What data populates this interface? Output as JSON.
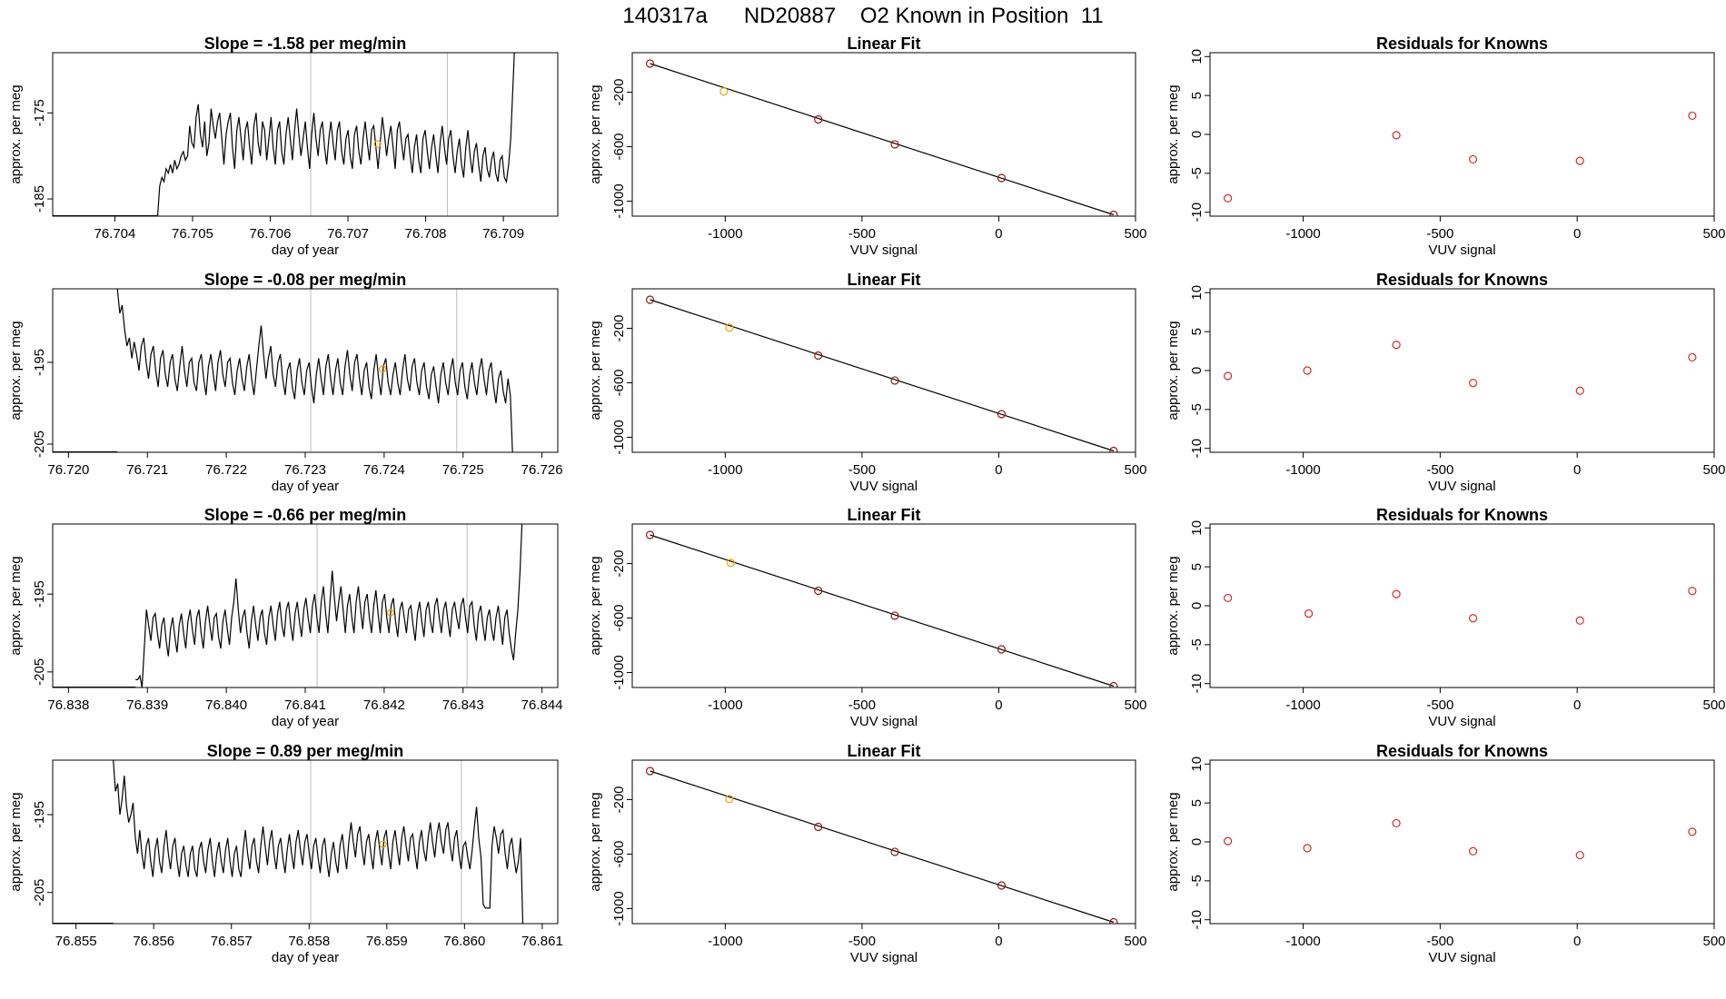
{
  "figure_title": "140317a      ND20887    O2 Known in Position  11",
  "colors": {
    "line": "#000000",
    "frame": "#000000",
    "vline": "#bdbdbd",
    "highlight": "#f2a100",
    "residual": "#d62728",
    "fit_point": "#8b1a1a"
  },
  "chart_data": [
    {
      "type": "line",
      "panel": "timeseries-1",
      "title": "Slope =  -1.58  per meg/min",
      "xlabel": "day of year",
      "ylabel": "approx. per meg",
      "xlim": [
        76.7032,
        76.7097
      ],
      "ylim": [
        -187,
        -168
      ],
      "xticks": [
        "76.704",
        "76.705",
        "76.706",
        "76.707",
        "76.708",
        "76.709"
      ],
      "yticks": [
        "-175",
        "-185"
      ],
      "x_start": 76.70455,
      "x_end": 76.70915,
      "y": [
        -187,
        -183.5,
        -182.5,
        -183,
        -181.5,
        -182,
        -181,
        -182,
        -180.5,
        -181.5,
        -181,
        -180,
        -179.5,
        -180.5,
        -180,
        -176.5,
        -178.5,
        -179,
        -175.5,
        -174,
        -177.5,
        -179,
        -176,
        -180,
        -178.5,
        -174.5,
        -176.5,
        -178,
        -176,
        -175,
        -178,
        -181,
        -177.5,
        -176,
        -175,
        -179,
        -181.5,
        -177,
        -175.5,
        -178,
        -180.5,
        -177,
        -176,
        -179,
        -181,
        -176.5,
        -175,
        -178.5,
        -180,
        -176,
        -177,
        -180.5,
        -178,
        -175.5,
        -179,
        -181,
        -177,
        -176,
        -179.5,
        -181,
        -177.5,
        -175.5,
        -178,
        -180.5,
        -177,
        -174.5,
        -177.5,
        -180,
        -178,
        -176,
        -179,
        -181.5,
        -177.5,
        -175,
        -178,
        -180,
        -177,
        -176,
        -179,
        -181,
        -178,
        -176,
        -178.5,
        -180.5,
        -177,
        -176,
        -179.5,
        -181,
        -178,
        -177,
        -180,
        -181.5,
        -177.5,
        -176.5,
        -179.5,
        -181,
        -178,
        -176,
        -178.5,
        -180.5,
        -177,
        -176.5,
        -179,
        -181.5,
        -178.5,
        -175.5,
        -177.5,
        -180,
        -178,
        -176.5,
        -179,
        -181.5,
        -177,
        -176,
        -178.5,
        -180.5,
        -178,
        -177.5,
        -180,
        -182,
        -179,
        -177.5,
        -180.5,
        -182,
        -178,
        -177,
        -179.5,
        -181.5,
        -179,
        -177.5,
        -180,
        -182,
        -178.5,
        -176.5,
        -179,
        -181,
        -178,
        -177,
        -180,
        -182,
        -179.5,
        -178,
        -181,
        -182.5,
        -179,
        -177,
        -180,
        -182,
        -179.5,
        -178.5,
        -181,
        -183,
        -180,
        -179,
        -181.5,
        -182.5,
        -180.5,
        -179.5,
        -182,
        -183,
        -180.5,
        -180,
        -182.5,
        -183,
        -181,
        -178,
        -172,
        -166
      ],
      "vlines": [
        76.70652,
        76.70828
      ],
      "highlight_point": {
        "x": 76.70738,
        "y": -178.6
      }
    },
    {
      "type": "scatter",
      "panel": "linear-fit-1",
      "title": "Linear Fit",
      "xlabel": "VUV signal",
      "ylabel": "approx. per meg",
      "xlim": [
        -1340,
        500
      ],
      "ylim": [
        -1110,
        90
      ],
      "xticks": [
        "-1000",
        "-500",
        "0",
        "500"
      ],
      "yticks": [
        "-200",
        "-600",
        "-1000"
      ],
      "x": [
        -1275,
        -1005,
        -660,
        -380,
        10,
        420
      ],
      "y": [
        10,
        -195,
        -400,
        -583,
        -830,
        -1100
      ],
      "highlight_index": 1
    },
    {
      "type": "scatter",
      "panel": "residuals-1",
      "title": "Residuals for Knowns",
      "xlabel": "VUV signal",
      "ylabel": "approx. per meg",
      "xlim": [
        -1340,
        500
      ],
      "ylim": [
        -10.5,
        10.5
      ],
      "xticks": [
        "-1000",
        "-500",
        "0",
        "500"
      ],
      "yticks": [
        "10",
        "5",
        "0",
        "-5",
        "-10"
      ],
      "x": [
        -1275,
        -660,
        -380,
        10,
        420
      ],
      "y": [
        -8.2,
        -0.1,
        -3.2,
        -3.4,
        2.4
      ]
    },
    {
      "type": "line",
      "panel": "timeseries-2",
      "title": "Slope =  -0.08  per meg/min",
      "xlabel": "day of year",
      "ylabel": "approx. per meg",
      "xlim": [
        76.7198,
        76.7262
      ],
      "ylim": [
        -206,
        -186
      ],
      "xticks": [
        "76.720",
        "76.721",
        "76.722",
        "76.723",
        "76.724",
        "76.725",
        "76.726"
      ],
      "yticks": [
        "-195",
        "-205"
      ],
      "x_start": 76.72062,
      "x_end": 76.72563,
      "y": [
        -186,
        -189,
        -188,
        -191,
        -193,
        -192,
        -194.5,
        -192.5,
        -194,
        -196,
        -193,
        -192,
        -195,
        -197,
        -194,
        -193,
        -196,
        -198,
        -194.5,
        -193.5,
        -196.5,
        -198,
        -195,
        -194,
        -197,
        -198.5,
        -195.5,
        -193,
        -196,
        -198,
        -195,
        -194.5,
        -197.5,
        -198.5,
        -195,
        -194,
        -197,
        -199,
        -195.5,
        -194,
        -196.5,
        -198.5,
        -195,
        -193.5,
        -196.5,
        -198,
        -195,
        -194.5,
        -197.5,
        -199,
        -196,
        -194.5,
        -197,
        -198.5,
        -195.5,
        -194,
        -197,
        -199,
        -196,
        -193,
        -190.5,
        -194,
        -197,
        -194.5,
        -193,
        -196.5,
        -198,
        -195,
        -194,
        -197,
        -199,
        -196,
        -195,
        -198,
        -199.5,
        -196,
        -194.5,
        -197.5,
        -199,
        -196,
        -195,
        -198,
        -200,
        -196.5,
        -194.5,
        -197,
        -199,
        -195.5,
        -194,
        -197,
        -199,
        -196,
        -194.5,
        -197.5,
        -199,
        -195.5,
        -193.5,
        -196.5,
        -198.5,
        -195,
        -194,
        -197,
        -199,
        -196,
        -195,
        -198,
        -199.5,
        -196,
        -194,
        -197,
        -199,
        -195.5,
        -194.5,
        -197.5,
        -199,
        -196.5,
        -195,
        -197.5,
        -199,
        -196,
        -194,
        -197,
        -198.5,
        -195.5,
        -194.5,
        -197.5,
        -199,
        -196,
        -195,
        -198,
        -199.5,
        -196.5,
        -195.5,
        -198,
        -200,
        -196.5,
        -195,
        -197.5,
        -199,
        -196,
        -194.5,
        -197.5,
        -199,
        -196,
        -195,
        -198,
        -199.5,
        -196.5,
        -195,
        -197.5,
        -199,
        -196,
        -194.5,
        -197,
        -199,
        -196,
        -195,
        -198,
        -200,
        -197,
        -196,
        -198.5,
        -200,
        -197,
        -199,
        -207
      ],
      "vlines": [
        76.72307,
        76.72492
      ],
      "highlight_point": {
        "x": 76.72398,
        "y": -195.8
      }
    },
    {
      "type": "scatter",
      "panel": "linear-fit-2",
      "title": "Linear Fit",
      "xlabel": "VUV signal",
      "ylabel": "approx. per meg",
      "xlim": [
        -1340,
        500
      ],
      "ylim": [
        -1110,
        90
      ],
      "xticks": [
        "-1000",
        "-500",
        "0",
        "500"
      ],
      "yticks": [
        "-200",
        "-600",
        "-1000"
      ],
      "x": [
        -1275,
        -985,
        -660,
        -380,
        10,
        420
      ],
      "y": [
        10,
        -195,
        -400,
        -583,
        -830,
        -1100
      ],
      "highlight_index": 1
    },
    {
      "type": "scatter",
      "panel": "residuals-2",
      "title": "Residuals for Knowns",
      "xlabel": "VUV signal",
      "ylabel": "approx. per meg",
      "xlim": [
        -1340,
        500
      ],
      "ylim": [
        -10.5,
        10.5
      ],
      "xticks": [
        "-1000",
        "-500",
        "0",
        "500"
      ],
      "yticks": [
        "10",
        "5",
        "0",
        "-5",
        "-10"
      ],
      "x": [
        -1275,
        -985,
        -660,
        -380,
        10,
        420
      ],
      "y": [
        -0.7,
        0.0,
        3.3,
        -1.6,
        -2.6,
        1.7
      ]
    },
    {
      "type": "line",
      "panel": "timeseries-3",
      "title": "Slope =  -0.66  per meg/min",
      "xlabel": "day of year",
      "ylabel": "approx. per meg",
      "xlim": [
        76.8378,
        76.8442
      ],
      "ylim": [
        -207,
        -186
      ],
      "xticks": [
        "76.838",
        "76.839",
        "76.840",
        "76.841",
        "76.842",
        "76.843",
        "76.844"
      ],
      "yticks": [
        "-195",
        "-205"
      ],
      "x_start": 76.83885,
      "x_end": 76.84375,
      "y": [
        -206,
        -206,
        -205.5,
        -207,
        -202,
        -197,
        -199,
        -201,
        -198,
        -197.5,
        -200,
        -202,
        -199,
        -198,
        -201,
        -203,
        -199.5,
        -198,
        -200.5,
        -202.5,
        -199,
        -197.5,
        -200,
        -202,
        -198.5,
        -197,
        -199.5,
        -201.5,
        -198,
        -197,
        -200,
        -202,
        -198.5,
        -196.5,
        -199,
        -201,
        -198,
        -197.5,
        -200.5,
        -202,
        -198.5,
        -197,
        -199.5,
        -201.5,
        -198,
        -196,
        -193,
        -197,
        -200,
        -198,
        -197,
        -200,
        -202,
        -198.5,
        -196.5,
        -199,
        -201,
        -198,
        -197,
        -200,
        -201.5,
        -198,
        -196.5,
        -199,
        -201,
        -197.5,
        -196,
        -199,
        -200.5,
        -197,
        -196,
        -199,
        -201,
        -197.5,
        -196,
        -198.5,
        -200.5,
        -197,
        -195.5,
        -198,
        -200,
        -196.5,
        -195,
        -198,
        -200,
        -196,
        -194,
        -197.5,
        -200,
        -196,
        -192,
        -195.5,
        -198.5,
        -196,
        -194,
        -197,
        -200,
        -196.5,
        -195,
        -198,
        -200,
        -196,
        -194,
        -197,
        -199.5,
        -196,
        -195,
        -198,
        -200,
        -196.5,
        -194.5,
        -197.5,
        -200,
        -196,
        -195,
        -198,
        -200,
        -196.5,
        -195.5,
        -198.5,
        -200.5,
        -197,
        -196,
        -198,
        -200,
        -197,
        -196.5,
        -199,
        -201,
        -197.5,
        -196,
        -198.5,
        -200.5,
        -197,
        -196,
        -198.5,
        -200,
        -196.5,
        -195.5,
        -198,
        -200,
        -197,
        -196,
        -198.5,
        -200.5,
        -197,
        -196,
        -198,
        -199.5,
        -196.5,
        -195.5,
        -198,
        -200,
        -196.5,
        -196,
        -199,
        -201,
        -197.5,
        -196.5,
        -199,
        -201,
        -198,
        -197,
        -199.5,
        -201,
        -198,
        -196.5,
        -199,
        -201.5,
        -198,
        -197,
        -200,
        -202,
        -203.5,
        -200,
        -197,
        -192,
        -185
      ],
      "vlines": [
        76.84115,
        76.84305
      ],
      "highlight_point": {
        "x": 76.84208,
        "y": -197.4
      }
    },
    {
      "type": "scatter",
      "panel": "linear-fit-3",
      "title": "Linear Fit",
      "xlabel": "VUV signal",
      "ylabel": "approx. per meg",
      "xlim": [
        -1340,
        500
      ],
      "ylim": [
        -1110,
        90
      ],
      "xticks": [
        "-1000",
        "-500",
        "0",
        "500"
      ],
      "yticks": [
        "-200",
        "-600",
        "-1000"
      ],
      "x": [
        -1275,
        -980,
        -660,
        -380,
        10,
        420
      ],
      "y": [
        10,
        -195,
        -400,
        -583,
        -830,
        -1100
      ],
      "highlight_index": 1
    },
    {
      "type": "scatter",
      "panel": "residuals-3",
      "title": "Residuals for Knowns",
      "xlabel": "VUV signal",
      "ylabel": "approx. per meg",
      "xlim": [
        -1340,
        500
      ],
      "ylim": [
        -10.5,
        10.5
      ],
      "xticks": [
        "-1000",
        "-500",
        "0",
        "500"
      ],
      "yticks": [
        "10",
        "5",
        "0",
        "-5",
        "-10"
      ],
      "x": [
        -1275,
        -980,
        -660,
        -380,
        10,
        420
      ],
      "y": [
        1.0,
        -1.0,
        1.5,
        -1.6,
        -1.9,
        1.9
      ]
    },
    {
      "type": "line",
      "panel": "timeseries-4",
      "title": "Slope =  0.89  per meg/min",
      "xlabel": "day of year",
      "ylabel": "approx. per meg",
      "xlim": [
        76.8547,
        76.8612
      ],
      "ylim": [
        -209,
        -188
      ],
      "xticks": [
        "76.855",
        "76.856",
        "76.857",
        "76.858",
        "76.859",
        "76.860",
        "76.861"
      ],
      "yticks": [
        "-195",
        "-205"
      ],
      "x_start": 76.85548,
      "x_end": 76.86075,
      "y": [
        -188,
        -192,
        -191,
        -195,
        -193,
        -190,
        -194,
        -196,
        -195,
        -193.5,
        -198,
        -200,
        -197,
        -200,
        -202,
        -199,
        -198,
        -201,
        -203,
        -199.5,
        -198,
        -201,
        -202.5,
        -199,
        -197,
        -200,
        -202,
        -199,
        -198,
        -201,
        -203,
        -200,
        -199,
        -201.5,
        -203,
        -200,
        -199,
        -202,
        -203,
        -199.5,
        -198.5,
        -201,
        -202.5,
        -199.5,
        -198,
        -201,
        -203,
        -200,
        -198.5,
        -201,
        -202.5,
        -199.5,
        -198,
        -201,
        -203,
        -200,
        -199,
        -202,
        -203,
        -199.5,
        -197,
        -200,
        -202,
        -199,
        -198,
        -201,
        -202.5,
        -199,
        -196.5,
        -199,
        -201.5,
        -198.5,
        -197,
        -200,
        -202,
        -199,
        -198,
        -200.5,
        -202.5,
        -199.5,
        -197.5,
        -200,
        -202,
        -198.5,
        -197,
        -199.5,
        -201.5,
        -198.5,
        -197.5,
        -200,
        -202,
        -199,
        -198,
        -200.5,
        -202.5,
        -199,
        -198,
        -201,
        -203,
        -200,
        -198.5,
        -201,
        -202.5,
        -199,
        -197.5,
        -200,
        -202,
        -198.5,
        -196,
        -198.5,
        -200.5,
        -197.5,
        -196.5,
        -199.5,
        -201.5,
        -198.5,
        -197.5,
        -200,
        -202,
        -198.5,
        -197,
        -199.5,
        -201.5,
        -198,
        -197,
        -200,
        -202,
        -198.5,
        -197,
        -199.5,
        -201.5,
        -198,
        -196.5,
        -199,
        -201,
        -198,
        -197.5,
        -200,
        -202,
        -198.5,
        -197,
        -199.5,
        -201,
        -198,
        -196,
        -198.5,
        -200.5,
        -197.5,
        -196,
        -198.5,
        -200,
        -197,
        -196,
        -199,
        -201,
        -198,
        -197,
        -200,
        -202,
        -199,
        -198.5,
        -200.5,
        -202,
        -199.5,
        -196.5,
        -194,
        -198,
        -200.5,
        -206.5,
        -207,
        -207,
        -207,
        -199,
        -196.5,
        -198,
        -200,
        -197.5,
        -197,
        -200,
        -202,
        -199,
        -198,
        -200.5,
        -202.5,
        -201,
        -198,
        -209
      ],
      "vlines": [
        76.85802,
        76.85996
      ],
      "highlight_point": {
        "x": 76.85895,
        "y": -198.8
      }
    },
    {
      "type": "scatter",
      "panel": "linear-fit-4",
      "title": "Linear Fit",
      "xlabel": "VUV signal",
      "ylabel": "approx. per meg",
      "xlim": [
        -1340,
        500
      ],
      "ylim": [
        -1110,
        90
      ],
      "xticks": [
        "-1000",
        "-500",
        "0",
        "500"
      ],
      "yticks": [
        "-200",
        "-600",
        "-1000"
      ],
      "x": [
        -1275,
        -985,
        -660,
        -380,
        10,
        420
      ],
      "y": [
        10,
        -195,
        -400,
        -583,
        -830,
        -1100
      ],
      "highlight_index": 1
    },
    {
      "type": "scatter",
      "panel": "residuals-4",
      "title": "Residuals for Knowns",
      "xlabel": "VUV signal",
      "ylabel": "approx. per meg",
      "xlim": [
        -1340,
        500
      ],
      "ylim": [
        -10.5,
        10.5
      ],
      "xticks": [
        "-1000",
        "-500",
        "0",
        "500"
      ],
      "yticks": [
        "10",
        "5",
        "0",
        "-5",
        "-10"
      ],
      "x": [
        -1275,
        -985,
        -660,
        -380,
        10,
        420
      ],
      "y": [
        0.1,
        -0.8,
        2.4,
        -1.2,
        -1.7,
        1.3
      ]
    }
  ]
}
